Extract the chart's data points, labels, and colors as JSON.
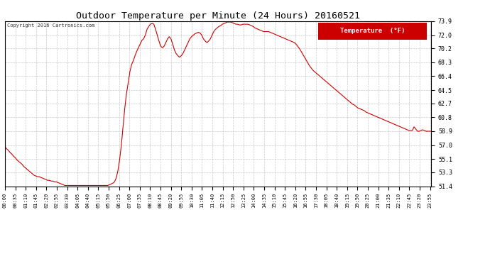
{
  "title": "Outdoor Temperature per Minute (24 Hours) 20160521",
  "copyright": "Copyright 2016 Cartronics.com",
  "legend_label": "Temperature  (°F)",
  "line_color": "#cc0000",
  "background_color": "#ffffff",
  "plot_bg_color": "#ffffff",
  "grid_color": "#bbbbbb",
  "yticks": [
    51.4,
    53.3,
    55.1,
    57.0,
    58.9,
    60.8,
    62.7,
    64.5,
    66.4,
    68.3,
    70.2,
    72.0,
    73.9
  ],
  "ylim": [
    51.4,
    73.9
  ],
  "xtick_labels": [
    "00:00",
    "00:35",
    "01:10",
    "01:45",
    "02:20",
    "02:55",
    "03:30",
    "04:05",
    "04:40",
    "05:15",
    "05:50",
    "06:25",
    "07:00",
    "07:35",
    "08:10",
    "08:45",
    "09:20",
    "09:55",
    "10:30",
    "11:05",
    "11:40",
    "12:15",
    "12:50",
    "13:25",
    "14:00",
    "14:35",
    "15:10",
    "15:45",
    "16:20",
    "16:55",
    "17:30",
    "18:05",
    "18:40",
    "19:15",
    "19:50",
    "20:25",
    "21:00",
    "21:35",
    "22:10",
    "22:45",
    "23:20",
    "23:55"
  ],
  "temp_data": [
    56.8,
    56.5,
    56.3,
    56.0,
    55.8,
    55.5,
    55.3,
    55.0,
    54.8,
    54.6,
    54.4,
    54.1,
    53.9,
    53.7,
    53.5,
    53.3,
    53.1,
    52.9,
    52.8,
    52.7,
    52.7,
    52.6,
    52.5,
    52.4,
    52.3,
    52.2,
    52.2,
    52.1,
    52.1,
    52.0,
    52.0,
    51.9,
    51.8,
    51.7,
    51.6,
    51.5,
    51.5,
    51.5,
    51.5,
    51.5,
    51.5,
    51.5,
    51.5,
    51.5,
    51.5,
    51.5,
    51.5,
    51.5,
    51.5,
    51.5,
    51.5,
    51.5,
    51.5,
    51.5,
    51.5,
    51.5,
    51.5,
    51.5,
    51.5,
    51.5,
    51.5,
    51.6,
    51.7,
    51.8,
    52.0,
    52.5,
    53.5,
    55.0,
    57.0,
    59.5,
    62.0,
    64.0,
    65.5,
    67.0,
    68.0,
    68.5,
    69.2,
    69.8,
    70.3,
    70.8,
    71.3,
    71.5,
    72.0,
    72.8,
    73.2,
    73.5,
    73.6,
    73.5,
    72.8,
    72.0,
    71.2,
    70.5,
    70.3,
    70.5,
    71.0,
    71.5,
    71.8,
    71.5,
    70.8,
    70.0,
    69.5,
    69.2,
    69.0,
    69.2,
    69.5,
    70.0,
    70.5,
    71.0,
    71.5,
    71.8,
    72.0,
    72.2,
    72.3,
    72.4,
    72.3,
    72.0,
    71.5,
    71.2,
    71.0,
    71.2,
    71.5,
    72.0,
    72.5,
    72.8,
    73.0,
    73.2,
    73.3,
    73.5,
    73.6,
    73.7,
    73.8,
    73.8,
    73.8,
    73.7,
    73.6,
    73.5,
    73.5,
    73.4,
    73.4,
    73.5,
    73.5,
    73.5,
    73.5,
    73.4,
    73.3,
    73.2,
    73.0,
    72.9,
    72.8,
    72.7,
    72.6,
    72.5,
    72.5,
    72.5,
    72.5,
    72.4,
    72.3,
    72.2,
    72.1,
    72.0,
    71.9,
    71.8,
    71.7,
    71.6,
    71.5,
    71.4,
    71.3,
    71.2,
    71.1,
    71.0,
    70.8,
    70.5,
    70.2,
    69.8,
    69.4,
    69.0,
    68.6,
    68.2,
    67.8,
    67.5,
    67.2,
    67.0,
    66.8,
    66.6,
    66.4,
    66.2,
    66.0,
    65.8,
    65.6,
    65.4,
    65.2,
    65.0,
    64.8,
    64.6,
    64.4,
    64.2,
    64.0,
    63.8,
    63.6,
    63.4,
    63.2,
    63.0,
    62.8,
    62.6,
    62.5,
    62.3,
    62.1,
    62.0,
    61.9,
    61.8,
    61.7,
    61.5,
    61.4,
    61.3,
    61.2,
    61.1,
    61.0,
    60.9,
    60.8,
    60.7,
    60.6,
    60.5,
    60.4,
    60.3,
    60.2,
    60.1,
    60.0,
    59.9,
    59.8,
    59.7,
    59.6,
    59.5,
    59.4,
    59.3,
    59.2,
    59.1,
    59.0,
    59.0,
    59.0,
    59.5,
    59.2,
    58.9,
    58.9,
    59.0,
    59.1,
    59.0,
    58.9,
    58.9,
    58.9,
    58.9
  ]
}
